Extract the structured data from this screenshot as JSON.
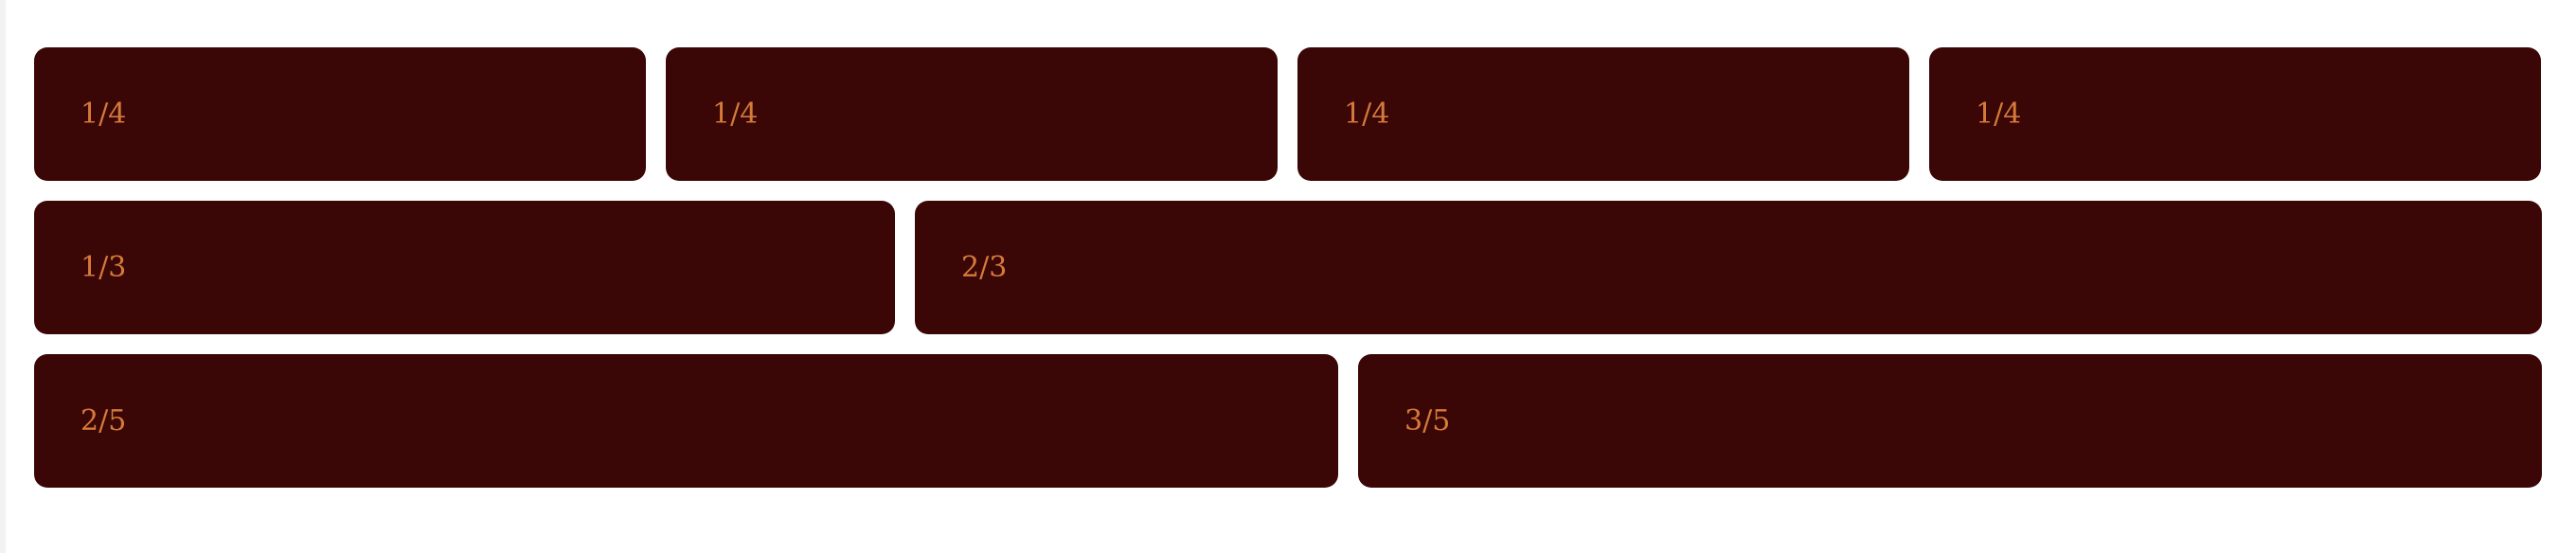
{
  "grid": {
    "rows": [
      {
        "cells": [
          {
            "label": "1/4"
          },
          {
            "label": "1/4"
          },
          {
            "label": "1/4"
          },
          {
            "label": "1/4"
          }
        ]
      },
      {
        "cells": [
          {
            "label": "1/3"
          },
          {
            "label": "2/3"
          }
        ]
      },
      {
        "cells": [
          {
            "label": "2/5"
          },
          {
            "label": "3/5"
          }
        ]
      }
    ]
  },
  "colors": {
    "page_background": "#ffffff",
    "cell_background": "#3a0706",
    "cell_text": "#d67a3a"
  }
}
